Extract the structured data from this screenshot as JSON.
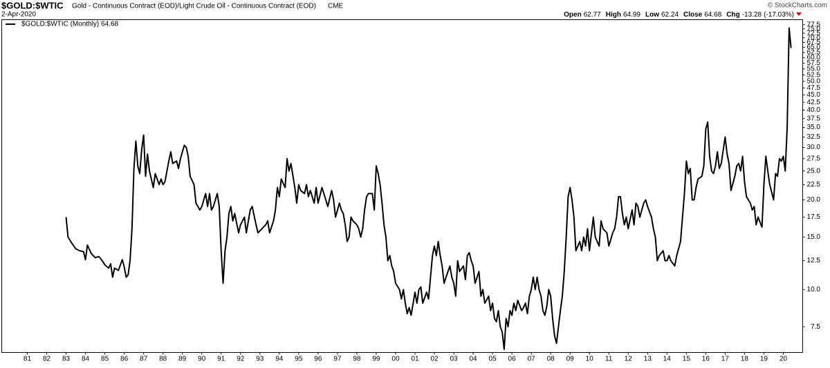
{
  "chart_data": {
    "type": "line",
    "title": "$GOLD:$WTIC",
    "subtitle": "Gold - Continuous Contract (EOD)/Light Crude Oil - Continuous Contract (EOD)",
    "exchange": "CME",
    "date": "2-Apr-2020",
    "credit": "© StockCharts.com",
    "quote": [
      {
        "label": "Open",
        "value": 62.77
      },
      {
        "label": "High",
        "value": 64.99
      },
      {
        "label": "Low",
        "value": 62.24
      },
      {
        "label": "Close",
        "value": 64.68
      },
      {
        "label": "Chg",
        "value": -13.28,
        "extra": "(-17.03%)"
      }
    ],
    "yscale": "log",
    "grid": false,
    "legend": "top-left",
    "xlim": [
      1979.68,
      2021.0
    ],
    "ylim": [
      6.15,
      80.5
    ],
    "xticks": [
      {
        "value": 1981,
        "label": "81"
      },
      {
        "value": 1982,
        "label": "82"
      },
      {
        "value": 1983,
        "label": "83"
      },
      {
        "value": 1984,
        "label": "84"
      },
      {
        "value": 1985,
        "label": "85"
      },
      {
        "value": 1986,
        "label": "86"
      },
      {
        "value": 1987,
        "label": "87"
      },
      {
        "value": 1988,
        "label": "88"
      },
      {
        "value": 1989,
        "label": "89"
      },
      {
        "value": 1990,
        "label": "90"
      },
      {
        "value": 1991,
        "label": "91"
      },
      {
        "value": 1992,
        "label": "92"
      },
      {
        "value": 1993,
        "label": "93"
      },
      {
        "value": 1994,
        "label": "94"
      },
      {
        "value": 1995,
        "label": "95"
      },
      {
        "value": 1996,
        "label": "96"
      },
      {
        "value": 1997,
        "label": "97"
      },
      {
        "value": 1998,
        "label": "98"
      },
      {
        "value": 1999,
        "label": "99"
      },
      {
        "value": 2000,
        "label": "00"
      },
      {
        "value": 2001,
        "label": "01"
      },
      {
        "value": 2002,
        "label": "02"
      },
      {
        "value": 2003,
        "label": "03"
      },
      {
        "value": 2004,
        "label": "04"
      },
      {
        "value": 2005,
        "label": "05"
      },
      {
        "value": 2006,
        "label": "06"
      },
      {
        "value": 2007,
        "label": "07"
      },
      {
        "value": 2008,
        "label": "08"
      },
      {
        "value": 2009,
        "label": "09"
      },
      {
        "value": 2010,
        "label": "10"
      },
      {
        "value": 2011,
        "label": "11"
      },
      {
        "value": 2012,
        "label": "12"
      },
      {
        "value": 2013,
        "label": "13"
      },
      {
        "value": 2014,
        "label": "14"
      },
      {
        "value": 2015,
        "label": "15"
      },
      {
        "value": 2016,
        "label": "16"
      },
      {
        "value": 2017,
        "label": "17"
      },
      {
        "value": 2018,
        "label": "18"
      },
      {
        "value": 2019,
        "label": "19"
      },
      {
        "value": 2020,
        "label": "20"
      }
    ],
    "yticks": [
      7.5,
      {
        "value": 10,
        "label": "10.0"
      },
      12.5,
      {
        "value": 15,
        "label": "15.0"
      },
      17.5,
      {
        "value": 20,
        "label": "20.0"
      },
      22.5,
      {
        "value": 25,
        "label": "25.0"
      },
      27.5,
      {
        "value": 30,
        "label": "30.0"
      },
      32.5,
      {
        "value": 35,
        "label": "35.0"
      },
      37.5,
      {
        "value": 40,
        "label": "40.0"
      },
      42.5,
      {
        "value": 45,
        "label": "45.0"
      },
      47.5,
      {
        "value": 50,
        "label": "50.0"
      },
      52.5,
      {
        "value": 55,
        "label": "55.0"
      },
      57.5,
      {
        "value": 60,
        "label": "60.0"
      },
      62.5,
      {
        "value": 65,
        "label": "65.0"
      },
      67.5,
      {
        "value": 70,
        "label": "70.0"
      },
      72.5,
      {
        "value": 75,
        "label": "75.0"
      },
      77.5
    ],
    "x": [
      1983.0,
      1983.1,
      1983.3,
      1983.5,
      1983.7,
      1983.9,
      1984.0,
      1984.1,
      1984.3,
      1984.5,
      1984.7,
      1984.9,
      1985.0,
      1985.2,
      1985.3,
      1985.4,
      1985.5,
      1985.7,
      1985.9,
      1986.0,
      1986.1,
      1986.2,
      1986.3,
      1986.4,
      1986.5,
      1986.6,
      1986.7,
      1986.8,
      1986.9,
      1987.0,
      1987.1,
      1987.2,
      1987.3,
      1987.5,
      1987.6,
      1987.8,
      1987.9,
      1988.0,
      1988.1,
      1988.3,
      1988.4,
      1988.5,
      1988.7,
      1988.8,
      1988.9,
      1989.1,
      1989.2,
      1989.3,
      1989.4,
      1989.6,
      1989.7,
      1989.9,
      1990.0,
      1990.2,
      1990.3,
      1990.4,
      1990.5,
      1990.6,
      1990.8,
      1990.9,
      1991.0,
      1991.1,
      1991.2,
      1991.3,
      1991.4,
      1991.5,
      1991.6,
      1991.7,
      1991.9,
      1992.0,
      1992.2,
      1992.3,
      1992.5,
      1992.6,
      1992.8,
      1992.9,
      1993.1,
      1993.3,
      1993.4,
      1993.5,
      1993.7,
      1993.8,
      1993.9,
      1994.0,
      1994.1,
      1994.3,
      1994.4,
      1994.5,
      1994.6,
      1994.8,
      1994.9,
      1995.0,
      1995.1,
      1995.3,
      1995.4,
      1995.5,
      1995.6,
      1995.8,
      1995.9,
      1996.0,
      1996.2,
      1996.3,
      1996.5,
      1996.7,
      1996.8,
      1996.9,
      1997.1,
      1997.2,
      1997.3,
      1997.4,
      1997.5,
      1997.6,
      1997.7,
      1997.8,
      1998.0,
      1998.1,
      1998.2,
      1998.3,
      1998.4,
      1998.5,
      1998.6,
      1998.8,
      1998.9,
      1999.0,
      1999.1,
      1999.2,
      1999.3,
      1999.4,
      1999.5,
      1999.6,
      1999.7,
      1999.8,
      1999.9,
      2000.0,
      2000.2,
      2000.3,
      2000.4,
      2000.5,
      2000.6,
      2000.7,
      2000.8,
      2001.0,
      2001.1,
      2001.2,
      2001.3,
      2001.4,
      2001.6,
      2001.7,
      2001.8,
      2001.9,
      2002.0,
      2002.1,
      2002.2,
      2002.3,
      2002.4,
      2002.5,
      2002.6,
      2002.8,
      2002.9,
      2003.0,
      2003.1,
      2003.2,
      2003.3,
      2003.5,
      2003.6,
      2003.7,
      2003.8,
      2003.9,
      2004.0,
      2004.1,
      2004.3,
      2004.4,
      2004.5,
      2004.6,
      2004.8,
      2004.9,
      2005.0,
      2005.1,
      2005.2,
      2005.3,
      2005.4,
      2005.5,
      2005.6,
      2005.7,
      2005.8,
      2005.9,
      2006.0,
      2006.1,
      2006.2,
      2006.3,
      2006.5,
      2006.6,
      2006.7,
      2006.8,
      2006.9,
      2007.0,
      2007.1,
      2007.2,
      2007.3,
      2007.4,
      2007.5,
      2007.6,
      2007.7,
      2007.8,
      2007.9,
      2008.0,
      2008.1,
      2008.2,
      2008.3,
      2008.4,
      2008.5,
      2008.6,
      2008.7,
      2008.8,
      2008.9,
      2009.0,
      2009.1,
      2009.2,
      2009.3,
      2009.5,
      2009.6,
      2009.7,
      2009.8,
      2009.9,
      2010.0,
      2010.2,
      2010.3,
      2010.5,
      2010.6,
      2010.7,
      2010.9,
      2011.0,
      2011.2,
      2011.3,
      2011.4,
      2011.5,
      2011.6,
      2011.7,
      2011.8,
      2011.9,
      2012.0,
      2012.2,
      2012.3,
      2012.4,
      2012.5,
      2012.6,
      2012.8,
      2012.9,
      2013.0,
      2013.2,
      2013.3,
      2013.4,
      2013.5,
      2013.6,
      2013.8,
      2013.9,
      2014.0,
      2014.1,
      2014.2,
      2014.4,
      2014.5,
      2014.7,
      2014.8,
      2014.9,
      2015.0,
      2015.1,
      2015.2,
      2015.3,
      2015.4,
      2015.5,
      2015.6,
      2015.8,
      2015.9,
      2016.0,
      2016.1,
      2016.2,
      2016.3,
      2016.4,
      2016.5,
      2016.6,
      2016.7,
      2016.8,
      2017.0,
      2017.1,
      2017.2,
      2017.3,
      2017.5,
      2017.6,
      2017.7,
      2017.8,
      2017.9,
      2018.0,
      2018.1,
      2018.3,
      2018.4,
      2018.5,
      2018.6,
      2018.7,
      2018.9,
      2019.0,
      2019.1,
      2019.2,
      2019.3,
      2019.5,
      2019.6,
      2019.7,
      2019.8,
      2019.9,
      2020.0,
      2020.1,
      2020.2,
      2020.3,
      2020.4
    ],
    "series": [
      {
        "name": "$GOLD:$WTIC (Monthly) 64.68",
        "color": "#000000",
        "values": [
          17.5,
          15.0,
          14.3,
          13.7,
          13.5,
          13.4,
          12.6,
          14.1,
          13.2,
          12.8,
          12.9,
          12.4,
          12.1,
          11.8,
          12.2,
          11.0,
          11.8,
          11.6,
          12.6,
          11.9,
          11.0,
          11.2,
          12.5,
          16.0,
          25.5,
          31.5,
          26.0,
          24.5,
          29.5,
          33.0,
          24.0,
          28.5,
          25.0,
          22.0,
          24.5,
          22.5,
          23.5,
          22.5,
          23.0,
          27.0,
          29.0,
          26.5,
          27.0,
          25.5,
          27.5,
          30.5,
          30.0,
          28.0,
          24.0,
          22.5,
          19.5,
          18.5,
          19.0,
          21.0,
          19.0,
          21.0,
          18.5,
          19.0,
          21.0,
          19.0,
          13.5,
          10.5,
          13.5,
          15.0,
          18.0,
          19.0,
          17.0,
          18.0,
          15.5,
          16.5,
          17.5,
          15.5,
          18.5,
          19.0,
          16.5,
          15.5,
          16.0,
          16.5,
          17.0,
          15.5,
          17.0,
          18.5,
          22.0,
          20.5,
          23.5,
          22.0,
          27.5,
          25.0,
          26.5,
          22.0,
          19.5,
          22.5,
          21.5,
          21.0,
          22.5,
          20.5,
          21.5,
          19.5,
          22.0,
          19.5,
          22.0,
          21.0,
          19.0,
          21.5,
          20.0,
          17.5,
          19.5,
          18.5,
          18.0,
          16.5,
          14.5,
          15.0,
          17.5,
          17.0,
          16.5,
          16.0,
          15.0,
          16.0,
          18.5,
          20.5,
          21.0,
          21.0,
          18.5,
          26.0,
          24.5,
          22.5,
          19.5,
          16.5,
          15.0,
          12.5,
          13.0,
          12.0,
          11.5,
          10.5,
          10.0,
          9.3,
          10.0,
          9.0,
          8.3,
          8.7,
          8.2,
          9.8,
          9.0,
          10.0,
          10.2,
          9.0,
          9.8,
          9.3,
          11.0,
          13.0,
          14.0,
          13.0,
          14.5,
          13.0,
          12.0,
          10.5,
          11.0,
          12.0,
          11.0,
          10.5,
          9.5,
          12.5,
          11.5,
          12.0,
          10.8,
          13.0,
          13.3,
          12.5,
          12.0,
          10.5,
          11.5,
          9.5,
          10.0,
          9.0,
          9.5,
          8.5,
          9.0,
          8.0,
          7.8,
          8.5,
          7.5,
          7.2,
          6.3,
          8.0,
          7.5,
          8.5,
          8.2,
          9.0,
          8.5,
          9.2,
          8.5,
          8.7,
          9.0,
          8.3,
          9.5,
          10.0,
          11.0,
          10.0,
          11.0,
          10.0,
          9.5,
          8.5,
          8.2,
          8.8,
          10.0,
          9.5,
          8.0,
          7.0,
          6.6,
          7.5,
          8.5,
          9.5,
          11.5,
          15.0,
          20.5,
          22.0,
          20.0,
          17.5,
          13.5,
          14.5,
          13.5,
          15.0,
          14.0,
          16.0,
          13.5,
          17.5,
          15.0,
          14.0,
          17.0,
          16.0,
          15.5,
          14.0,
          15.5,
          16.0,
          17.5,
          20.5,
          20.5,
          18.0,
          16.5,
          17.5,
          16.0,
          18.5,
          16.5,
          19.5,
          19.0,
          17.5,
          19.5,
          20.0,
          19.0,
          17.5,
          16.0,
          15.0,
          12.5,
          13.0,
          13.5,
          12.5,
          12.5,
          13.0,
          12.5,
          12.0,
          13.0,
          14.5,
          17.5,
          21.0,
          27.0,
          24.5,
          25.5,
          20.0,
          20.0,
          22.0,
          23.5,
          24.0,
          26.0,
          34.5,
          36.5,
          28.0,
          25.0,
          24.5,
          26.0,
          29.0,
          25.5,
          26.5,
          32.5,
          28.5,
          26.5,
          21.5,
          24.0,
          26.0,
          26.5,
          25.0,
          28.0,
          23.0,
          20.5,
          19.5,
          18.5,
          19.0,
          16.5,
          17.5,
          16.2,
          22.5,
          28.0,
          25.0,
          22.5,
          20.0,
          24.5,
          24.0,
          27.5,
          27.0,
          28.0,
          25.0,
          35.0,
          75.5,
          64.68
        ]
      }
    ]
  }
}
